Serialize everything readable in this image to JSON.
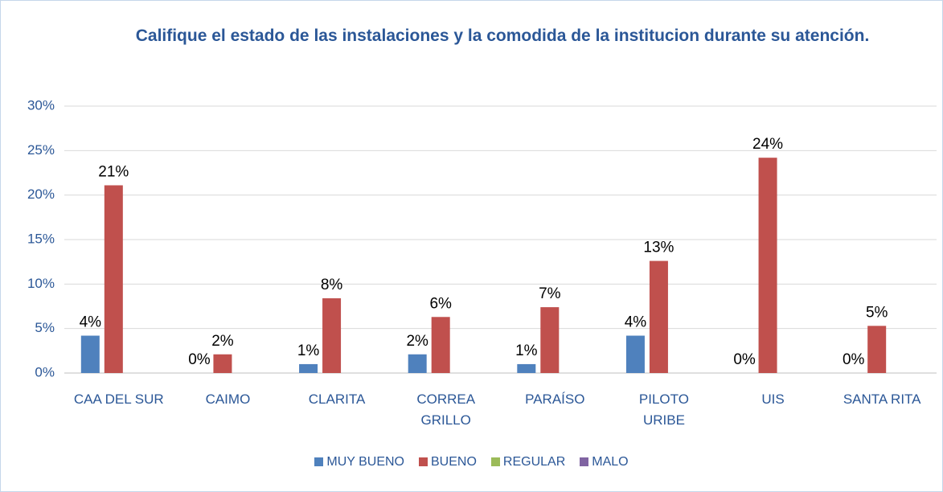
{
  "chart_data": {
    "type": "bar",
    "title": "Califique el estado de las instalaciones y la comodida de la institucion durante su atención.",
    "categories": [
      "CAA DEL SUR",
      "CAIMO",
      "CLARITA",
      "CORREA\nGRILLO",
      "PARAÍSO",
      "PILOTO\nURIBE",
      "UIS",
      "SANTA RITA"
    ],
    "series": [
      {
        "name": "MUY BUENO",
        "color": "#4f81bd",
        "values": [
          4.2,
          0,
          1,
          2.1,
          1,
          4.2,
          0,
          0
        ],
        "value_labels": [
          "4%",
          "0%",
          "1%",
          "2%",
          "1%",
          "4%",
          "0%",
          "0%"
        ]
      },
      {
        "name": "BUENO",
        "color": "#c0504d",
        "values": [
          21.1,
          2.1,
          8.4,
          6.3,
          7.4,
          12.6,
          24.2,
          5.3
        ],
        "value_labels": [
          "21%",
          "2%",
          "8%",
          "6%",
          "7%",
          "13%",
          "24%",
          "5%"
        ]
      },
      {
        "name": "REGULAR",
        "color": "#9bbb59",
        "values": [
          0,
          0,
          0,
          0,
          0,
          0,
          0,
          0
        ]
      },
      {
        "name": "MALO",
        "color": "#8064a2",
        "values": [
          0,
          0,
          0,
          0,
          0,
          0,
          0,
          0
        ]
      }
    ],
    "ylim": [
      0,
      30
    ],
    "yticks": [
      {
        "value": 0,
        "label": "0%"
      },
      {
        "value": 5,
        "label": "5%"
      },
      {
        "value": 10,
        "label": "10%"
      },
      {
        "value": 15,
        "label": "15%"
      },
      {
        "value": 20,
        "label": "20%"
      },
      {
        "value": 25,
        "label": "25%"
      },
      {
        "value": 30,
        "label": "30%"
      }
    ],
    "grid": true,
    "legend": "bottom"
  }
}
